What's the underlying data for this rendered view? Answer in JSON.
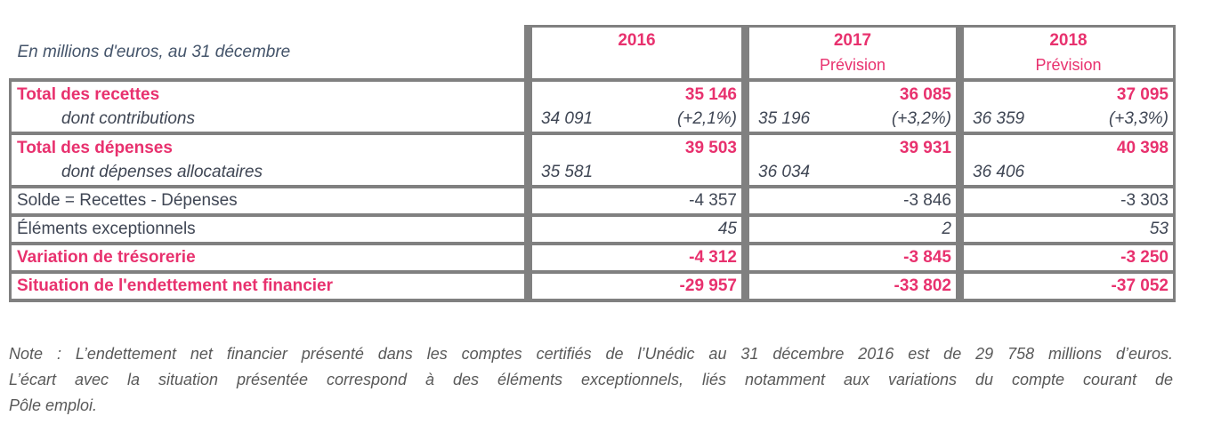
{
  "colors": {
    "accent_pink": "#E8316E",
    "text_dark": "#3F4654",
    "caption_blue": "#44546A",
    "note_gray": "#595959",
    "border_gray": "#808080"
  },
  "table": {
    "corner_label": "En millions d'euros, au 31 décembre",
    "columns": [
      {
        "year": "2016",
        "sub": ""
      },
      {
        "year": "2017",
        "sub": "Prévision"
      },
      {
        "year": "2018",
        "sub": "Prévision"
      }
    ],
    "recettes": {
      "label": "Total des recettes",
      "v2016": "35 146",
      "v2017": "36 085",
      "v2018": "37 095",
      "sub_label": "dont contributions",
      "s2016": "34 091",
      "p2016": "(+2,1%)",
      "s2017": "35 196",
      "p2017": "(+3,2%)",
      "s2018": "36 359",
      "p2018": "(+3,3%)"
    },
    "depenses": {
      "label": "Total des dépenses",
      "v2016": "39 503",
      "v2017": "39 931",
      "v2018": "40 398",
      "sub_label": "dont dépenses allocataires",
      "s2016": "35 581",
      "s2017": "36 034",
      "s2018": "36 406"
    },
    "solde": {
      "label": "Solde = Recettes - Dépenses",
      "v2016": "-4 357",
      "v2017": "-3 846",
      "v2018": "-3 303"
    },
    "exceptionnels": {
      "label": "Éléments exceptionnels",
      "v2016": "45",
      "v2017": "2",
      "v2018": "53"
    },
    "tresorerie": {
      "label": "Variation de trésorerie",
      "v2016": "-4 312",
      "v2017": "-3 845",
      "v2018": "-3 250"
    },
    "endettement": {
      "label": "Situation de l'endettement net financier",
      "v2016": "-29 957",
      "v2017": "-33 802",
      "v2018": "-37 052"
    }
  },
  "note": {
    "line1": "Note : L’endettement net financier présenté dans les comptes certifiés de l’Unédic au 31 décembre 2016 est de 29 758 millions d’euros.",
    "line2": "L’écart avec la situation présentée correspond à des éléments exceptionnels, liés notamment aux variations du compte courant de",
    "line3": "Pôle emploi."
  }
}
